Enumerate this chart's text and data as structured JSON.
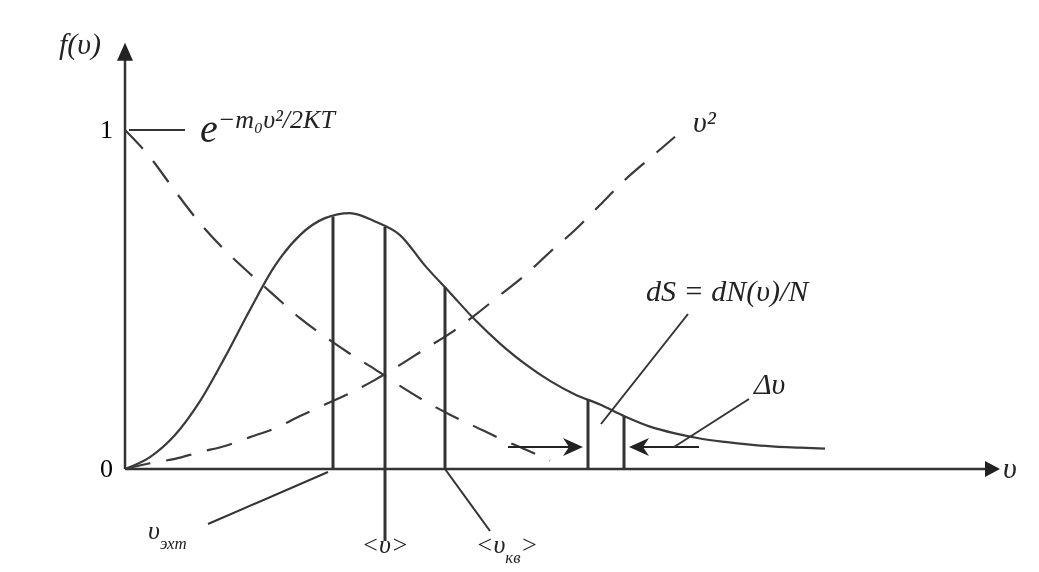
{
  "chart_data": {
    "type": "line",
    "ylabel": "f(υ)",
    "categories": [
      null,
      null,
      null,
      null,
      null,
      null,
      null,
      null,
      null,
      null,
      null,
      null,
      null,
      null,
      null,
      null,
      null,
      null,
      null,
      null,
      null,
      null,
      null,
      null,
      null,
      null,
      null,
      null,
      null
    ],
    "ylim": [
      0,
      1.24
    ],
    "yticks": [
      0,
      1
    ],
    "grid": false,
    "marker": "none",
    "series": [
      {
        "color": "#3a3a3a",
        "line_style": "solid",
        "values": [
          0,
          0.035,
          0.1,
          0.2,
          0.33,
          0.47,
          0.6,
          0.69,
          0.74,
          0.755,
          0.73,
          0.69,
          0.6,
          0.52,
          0.44,
          0.37,
          0.31,
          0.26,
          0.22,
          0.19,
          0.155,
          0.125,
          0.105,
          0.09,
          0.08,
          0.072,
          0.066,
          0.063,
          0.06
        ]
      },
      {
        "color": "#3a3a3a",
        "line_style": "dashed",
        "values": [
          1,
          0.92,
          0.82,
          0.725,
          0.645,
          0.576,
          0.51,
          0.445,
          0.39,
          0.34,
          0.294,
          0.245,
          0.2,
          0.16,
          0.125,
          0.09,
          0.058,
          0.025,
          null,
          null,
          null,
          null,
          null,
          null,
          null,
          null,
          null,
          null,
          null
        ]
      },
      {
        "color": "#3a3a3a",
        "line_style": "dashed",
        "values": [
          0,
          0.017,
          0.03,
          0.05,
          0.068,
          0.094,
          0.12,
          0.156,
          0.19,
          0.224,
          0.263,
          0.307,
          0.354,
          0.4,
          0.454,
          0.513,
          0.572,
          0.64,
          0.705,
          0.779,
          0.853,
          0.917,
          0.98,
          null,
          null,
          null,
          null,
          null,
          null
        ]
      }
    ],
    "annotations": [
      "e$^{−m₀υ²/2KT}$",
      "υ²",
      "dS = dN(υ)/N",
      "Δυ",
      "υ$_{эхт}$",
      "<υ>",
      "<υ$_{кв}$>",
      "υ"
    ]
  }
}
